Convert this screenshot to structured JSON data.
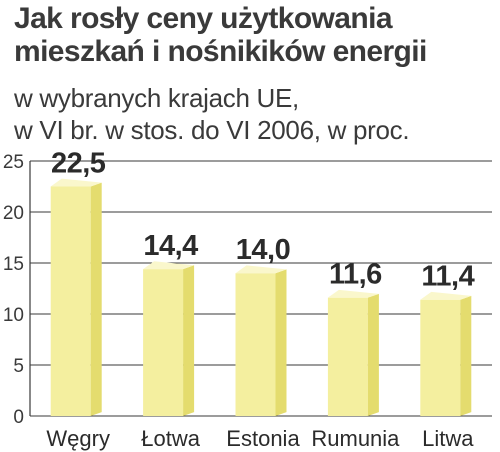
{
  "header": {
    "title_line1": "Jak rosły ceny użytkowania",
    "title_line2": "mieszkań i nośnikików energii",
    "subtitle_line1": "w wybranych krajach UE,",
    "subtitle_line2": "w VI br. w stos. do VI 2006, w proc."
  },
  "colors": {
    "bar_front": "#f4ef9f",
    "bar_side": "#e4dc6e",
    "bar_top": "#faf7cc",
    "grid": "#3a3a3a"
  },
  "chart_data": {
    "type": "bar",
    "title": "Jak rosły ceny użytkowania mieszkań i nośnikików energii",
    "subtitle": "w wybranych krajach UE, w VI br. w stos. do VI 2006, w proc.",
    "categories": [
      "Węgry",
      "Łotwa",
      "Estonia",
      "Rumunia",
      "Litwa"
    ],
    "values": [
      22.5,
      14.4,
      14.0,
      11.6,
      11.4
    ],
    "value_labels": [
      "22,5",
      "14,4",
      "14,0",
      "11,6",
      "11,4"
    ],
    "ylim": [
      0,
      25
    ],
    "yticks": [
      0,
      5,
      10,
      15,
      20,
      25
    ],
    "grid": true,
    "xlabel": "",
    "ylabel": ""
  }
}
